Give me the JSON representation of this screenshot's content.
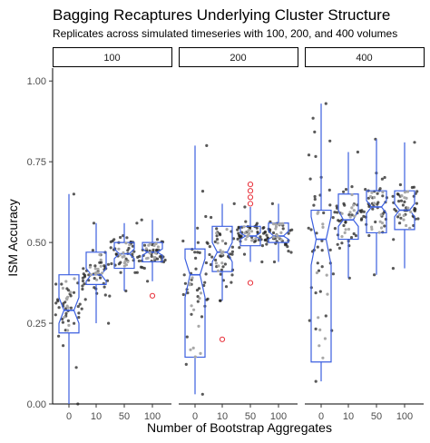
{
  "chart_data": {
    "type": "boxplot",
    "title": "Bagging Recaptures Underlying Cluster Structure",
    "subtitle": "Replicates across simulated timeseries with 100, 200, and 400 volumes",
    "xlabel": "Number of Bootstrap Aggregates",
    "ylabel": "ISM Accuracy",
    "ylim": [
      0,
      1.04
    ],
    "y_ticks": [
      0.0,
      0.25,
      0.5,
      0.75,
      1.0
    ],
    "y_tick_labels": [
      "0.00",
      "0.25",
      "0.50",
      "0.75",
      "1.00"
    ],
    "categories": [
      "0",
      "10",
      "50",
      "100"
    ],
    "facet_labels": [
      "100",
      "200",
      "400"
    ],
    "grid": false,
    "legend": "none",
    "colors": {
      "box": "#3b5fe0",
      "outlier": "#e8303a",
      "jitter": "#222222",
      "jitter_inner": "#a8a8a8"
    },
    "panels": [
      {
        "label": "100",
        "boxes": [
          {
            "category": "0",
            "q1": 0.22,
            "median": 0.29,
            "q3": 0.4,
            "whisker_low": 0.0,
            "whisker_high": 0.65,
            "notch_low": 0.25,
            "notch_high": 0.33,
            "outliers": []
          },
          {
            "category": "10",
            "q1": 0.37,
            "median": 0.4,
            "q3": 0.47,
            "whisker_low": 0.25,
            "whisker_high": 0.56,
            "notch_low": 0.38,
            "notch_high": 0.42,
            "outliers": []
          },
          {
            "category": "50",
            "q1": 0.42,
            "median": 0.465,
            "q3": 0.5,
            "whisker_low": 0.35,
            "whisker_high": 0.56,
            "notch_low": 0.45,
            "notch_high": 0.48,
            "outliers": []
          },
          {
            "category": "100",
            "q1": 0.44,
            "median": 0.47,
            "q3": 0.5,
            "whisker_low": 0.38,
            "whisker_high": 0.57,
            "notch_low": 0.46,
            "notch_high": 0.48,
            "outliers": [
              0.335
            ]
          }
        ]
      },
      {
        "label": "200",
        "boxes": [
          {
            "category": "0",
            "q1": 0.145,
            "median": 0.4,
            "q3": 0.48,
            "whisker_low": 0.03,
            "whisker_high": 0.8,
            "notch_low": 0.33,
            "notch_high": 0.45,
            "outliers": []
          },
          {
            "category": "10",
            "q1": 0.41,
            "median": 0.47,
            "q3": 0.55,
            "whisker_low": 0.32,
            "whisker_high": 0.62,
            "notch_low": 0.44,
            "notch_high": 0.5,
            "outliers": [
              0.2
            ]
          },
          {
            "category": "50",
            "q1": 0.49,
            "median": 0.52,
            "q3": 0.55,
            "whisker_low": 0.44,
            "whisker_high": 0.61,
            "notch_low": 0.51,
            "notch_high": 0.53,
            "outliers": [
              0.68,
              0.66,
              0.64,
              0.62,
              0.375
            ]
          },
          {
            "category": "100",
            "q1": 0.5,
            "median": 0.52,
            "q3": 0.56,
            "whisker_low": 0.44,
            "whisker_high": 0.62,
            "notch_low": 0.51,
            "notch_high": 0.535,
            "outliers": []
          }
        ]
      },
      {
        "label": "400",
        "boxes": [
          {
            "category": "0",
            "q1": 0.13,
            "median": 0.51,
            "q3": 0.6,
            "whisker_low": 0.07,
            "whisker_high": 0.93,
            "notch_low": 0.43,
            "notch_high": 0.58,
            "outliers": []
          },
          {
            "category": "10",
            "q1": 0.51,
            "median": 0.57,
            "q3": 0.65,
            "whisker_low": 0.39,
            "whisker_high": 0.78,
            "notch_low": 0.55,
            "notch_high": 0.6,
            "outliers": []
          },
          {
            "category": "50",
            "q1": 0.53,
            "median": 0.61,
            "q3": 0.66,
            "whisker_low": 0.4,
            "whisker_high": 0.82,
            "notch_low": 0.59,
            "notch_high": 0.63,
            "outliers": []
          },
          {
            "category": "100",
            "q1": 0.54,
            "median": 0.6,
            "q3": 0.66,
            "whisker_low": 0.42,
            "whisker_high": 0.81,
            "notch_low": 0.58,
            "notch_high": 0.62,
            "outliers": []
          }
        ]
      }
    ]
  }
}
